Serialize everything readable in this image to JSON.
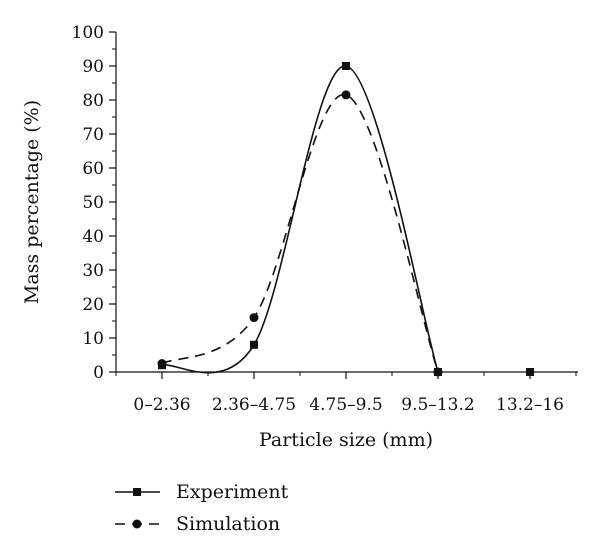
{
  "chart_data": {
    "type": "line",
    "title": "",
    "xlabel": "Particle size (mm)",
    "ylabel": "Mass percentage (%)",
    "categories": [
      "0–2.36",
      "2.36–4.75",
      "4.75–9.5",
      "9.5–13.2",
      "13.2–16"
    ],
    "ylim": [
      0,
      100
    ],
    "yticks": [
      0,
      10,
      20,
      30,
      40,
      50,
      60,
      70,
      80,
      90,
      100
    ],
    "grid": false,
    "legend_position": "bottom-left",
    "series": [
      {
        "name": "Experiment",
        "values": [
          2,
          8,
          90,
          0,
          0
        ],
        "marker": "square",
        "line_style": "solid",
        "color": "#111111"
      },
      {
        "name": "Simulation",
        "values": [
          2.5,
          16,
          81.5,
          0,
          null
        ],
        "marker": "circle",
        "line_style": "dashed",
        "color": "#111111"
      }
    ]
  }
}
